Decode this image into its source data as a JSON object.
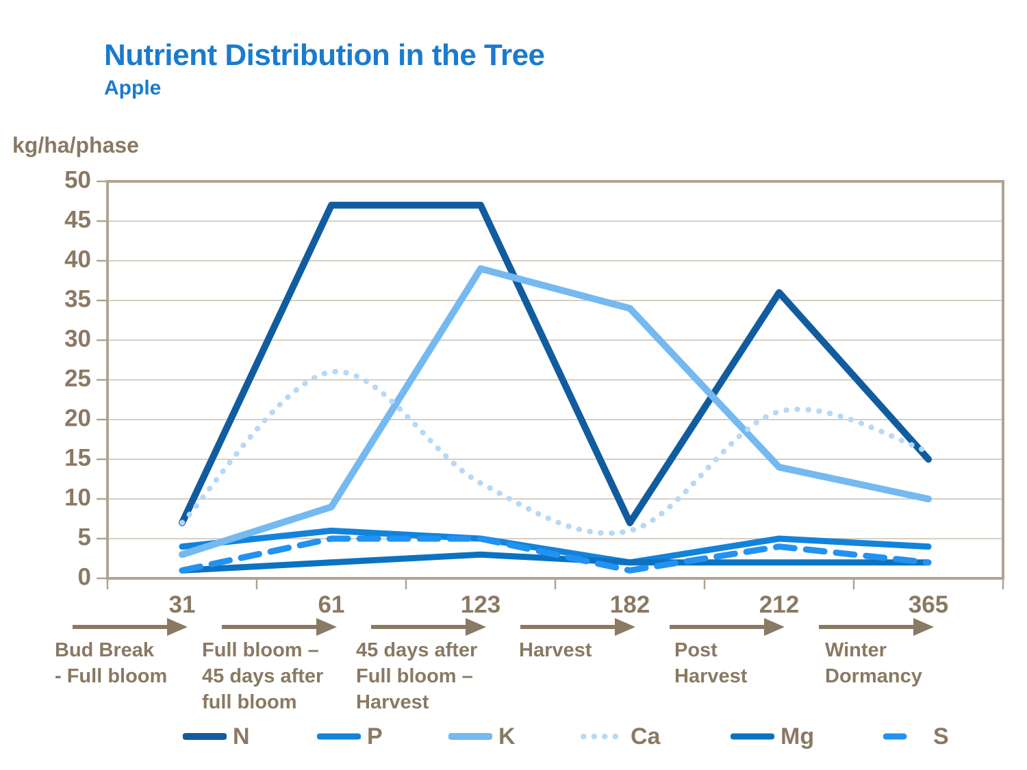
{
  "header": {
    "title": "Nutrient Distribution in the Tree",
    "subtitle": "Apple"
  },
  "y_axis": {
    "label": "kg/ha/phase",
    "tick_labels": [
      "0",
      "5",
      "10",
      "15",
      "20",
      "25",
      "30",
      "35",
      "40",
      "45",
      "50"
    ]
  },
  "x_axis": {
    "phases": [
      {
        "tick": "31",
        "label_lines": [
          "Bud Break",
          "- Full bloom"
        ]
      },
      {
        "tick": "61",
        "label_lines": [
          "Full bloom –",
          "45 days after",
          "full bloom"
        ]
      },
      {
        "tick": "123",
        "label_lines": [
          "45 days after",
          "Full bloom –",
          "Harvest"
        ]
      },
      {
        "tick": "182",
        "label_lines": [
          "Harvest"
        ]
      },
      {
        "tick": "212",
        "label_lines": [
          "Post",
          "Harvest"
        ]
      },
      {
        "tick": "365",
        "label_lines": [
          "Winter",
          "Dormancy"
        ]
      }
    ]
  },
  "chart_data": {
    "type": "line",
    "title": "Nutrient Distribution in the Tree",
    "subtitle": "Apple",
    "xlabel": "",
    "ylabel": "kg/ha/phase",
    "categories": [
      "31",
      "61",
      "123",
      "182",
      "212",
      "365"
    ],
    "series": [
      {
        "name": "N",
        "values": [
          7,
          47,
          47,
          7,
          36,
          15
        ],
        "color": "#115C9F",
        "style": "solid",
        "width": 10,
        "smooth": false
      },
      {
        "name": "P",
        "values": [
          4,
          6,
          5,
          2,
          5,
          4
        ],
        "color": "#1283DB",
        "style": "solid",
        "width": 9,
        "smooth": false
      },
      {
        "name": "K",
        "values": [
          3,
          9,
          39,
          34,
          14,
          10
        ],
        "color": "#74B9F0",
        "style": "solid",
        "width": 10,
        "smooth": false
      },
      {
        "name": "Ca",
        "values": [
          7,
          26,
          12,
          6,
          21,
          16
        ],
        "color": "#B7D8F6",
        "style": "dotted",
        "width": 8,
        "smooth": true
      },
      {
        "name": "Mg",
        "values": [
          1,
          2,
          3,
          2,
          2,
          2
        ],
        "color": "#0C72C0",
        "style": "solid",
        "width": 9,
        "smooth": false
      },
      {
        "name": "S",
        "values": [
          1,
          5,
          5,
          1,
          4,
          2
        ],
        "color": "#2292F0",
        "style": "dashed",
        "width": 9,
        "smooth": false
      }
    ],
    "ylim": [
      0,
      50
    ],
    "ystep": 5,
    "grid": true,
    "legend_position": "bottom"
  },
  "colors": {
    "title_blue": "#1A7BCE",
    "axis_text_brown": "#8A7963",
    "plot_border": "#B1A391",
    "gridline": "#C9BFB0",
    "arrow": "#8A7963"
  }
}
